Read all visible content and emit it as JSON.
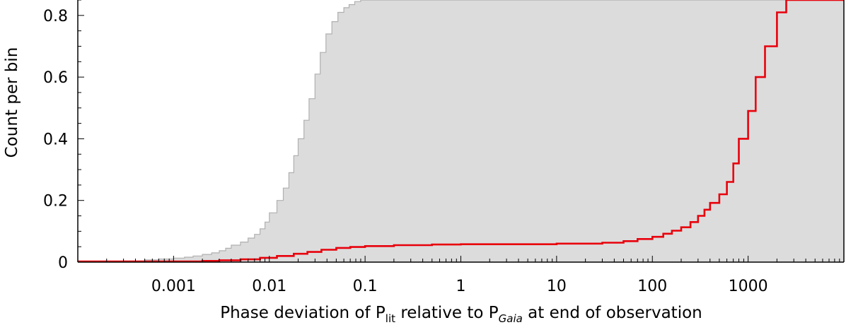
{
  "chart_data": {
    "type": "area",
    "x_scale": "log",
    "xlim": [
      0.0001,
      10000
    ],
    "ylim": [
      0,
      0.85
    ],
    "grid": false,
    "x_ticks": [
      {
        "value": 0.001,
        "label": "0.001"
      },
      {
        "value": 0.01,
        "label": "0.01"
      },
      {
        "value": 0.1,
        "label": "0.1"
      },
      {
        "value": 1,
        "label": "1"
      },
      {
        "value": 10,
        "label": "10"
      },
      {
        "value": 100,
        "label": "100"
      },
      {
        "value": 1000,
        "label": "1000"
      }
    ],
    "y_ticks": [
      {
        "value": 0,
        "label": "0"
      },
      {
        "value": 0.2,
        "label": "0.2"
      },
      {
        "value": 0.4,
        "label": "0.4"
      },
      {
        "value": 0.6,
        "label": "0.6"
      },
      {
        "value": 0.8,
        "label": "0.8"
      }
    ],
    "xlabel": {
      "pre": "Phase deviation of P",
      "sub1": "lit",
      "mid": " relative to P",
      "sub2": "Gaia",
      "post": " at end of observation"
    },
    "ylabel": "Count per bin",
    "series": [
      {
        "style": "filled-step",
        "color": "#dcdcdc",
        "edge_color": "#b0b0b0",
        "x": [
          0.0001,
          0.0003,
          0.0005,
          0.0007,
          0.001,
          0.0013,
          0.0016,
          0.002,
          0.0025,
          0.003,
          0.0035,
          0.004,
          0.005,
          0.006,
          0.007,
          0.008,
          0.009,
          0.01,
          0.012,
          0.014,
          0.016,
          0.018,
          0.02,
          0.023,
          0.026,
          0.03,
          0.034,
          0.039,
          0.045,
          0.052,
          0.06,
          0.068,
          0.078,
          0.09,
          0.1,
          0.11
        ],
        "y": [
          0.002,
          0.004,
          0.007,
          0.01,
          0.013,
          0.016,
          0.02,
          0.025,
          0.03,
          0.037,
          0.045,
          0.055,
          0.065,
          0.078,
          0.09,
          0.108,
          0.13,
          0.16,
          0.2,
          0.24,
          0.29,
          0.345,
          0.4,
          0.46,
          0.53,
          0.61,
          0.68,
          0.74,
          0.78,
          0.81,
          0.825,
          0.835,
          0.845,
          0.85,
          0.85,
          0.85
        ]
      },
      {
        "style": "step",
        "color": "#e8000b",
        "x": [
          0.0001,
          0.001,
          0.002,
          0.003,
          0.005,
          0.008,
          0.012,
          0.018,
          0.025,
          0.035,
          0.05,
          0.07,
          0.1,
          0.2,
          0.5,
          1,
          3,
          10,
          30,
          50,
          70,
          100,
          130,
          160,
          200,
          250,
          300,
          350,
          400,
          500,
          600,
          700,
          800,
          1000,
          1200,
          1500,
          2000,
          2500,
          3000
        ],
        "y": [
          0.002,
          0.002,
          0.004,
          0.006,
          0.009,
          0.014,
          0.02,
          0.027,
          0.033,
          0.04,
          0.046,
          0.049,
          0.052,
          0.055,
          0.057,
          0.058,
          0.058,
          0.06,
          0.063,
          0.068,
          0.075,
          0.082,
          0.092,
          0.102,
          0.113,
          0.13,
          0.15,
          0.17,
          0.192,
          0.22,
          0.26,
          0.32,
          0.4,
          0.49,
          0.6,
          0.7,
          0.81,
          0.85,
          0.86
        ]
      }
    ]
  }
}
